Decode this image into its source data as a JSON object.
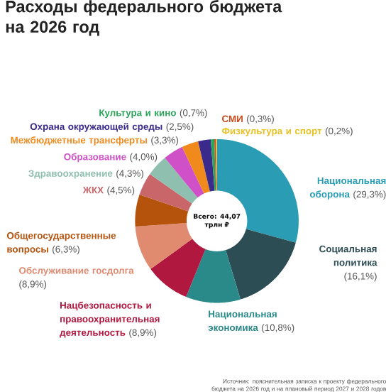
{
  "chart_data": {
    "type": "donut",
    "title": "Расходы федерального бюджета на 2026 год",
    "categories": [
      "Национальная оборона",
      "Социальная политика",
      "Национальная экономика",
      "Нацбезопасность и правоохранительная деятельность",
      "Обслуживание госдолга",
      "Общегосударственные вопросы",
      "ЖКХ",
      "Здравоохранение",
      "Образование",
      "Межбюджетные трансферты",
      "Охрана окружающей среды",
      "Культура и кино",
      "СМИ",
      "Физкультура и спорт"
    ],
    "values": [
      29.3,
      16.1,
      10.8,
      8.9,
      8.9,
      6.3,
      4.5,
      4.3,
      4.0,
      3.3,
      2.5,
      0.7,
      0.3,
      0.2
    ],
    "value_labels": [
      "(29,3%)",
      "(16,1%)",
      "(10,8%)",
      "(8,9%)",
      "(8,9%)",
      "(6,3%)",
      "(4,5%)",
      "(4,3%)",
      "(4,0%)",
      "(3,3%)",
      "(2,5%)",
      "(0,7%)",
      "(0,3%)",
      "(0,2%)"
    ],
    "colors": [
      "#2a9db5",
      "#2d4d55",
      "#2a8a8a",
      "#b0183f",
      "#e08a70",
      "#b5520c",
      "#c8666a",
      "#8fbfae",
      "#d050c8",
      "#f08a1c",
      "#3a2a8c",
      "#2aa55a",
      "#c84a1a",
      "#e8c020"
    ],
    "annotations": [
      "Всего: 44,07 трлн ₽",
      "Источник: пояснительная записка к проекту федерального бюджета на 2026 год и на плановый период 2027 и 2028 годов"
    ]
  }
}
